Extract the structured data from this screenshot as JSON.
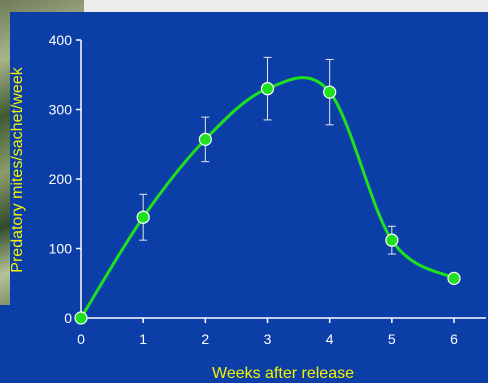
{
  "chart_data": {
    "type": "line",
    "title": "",
    "xlabel": "Weeks after release",
    "ylabel": "Predatory mites/sachet/week",
    "xlim": [
      0,
      6
    ],
    "ylim": [
      0,
      400
    ],
    "x_ticks": [
      0,
      1,
      2,
      3,
      4,
      5,
      6
    ],
    "y_ticks": [
      0,
      100,
      200,
      300,
      400
    ],
    "series": [
      {
        "x": [
          0,
          1,
          2,
          3,
          4,
          5,
          6
        ],
        "values": [
          0,
          145,
          257,
          330,
          325,
          112,
          57
        ],
        "error": [
          null,
          33,
          32,
          45,
          47,
          20,
          null
        ],
        "color": "#1fe01f",
        "marker": "circle"
      }
    ],
    "grid": false,
    "colors": {
      "background": "#0c3ea8",
      "axis": "#ffffff",
      "label": "#f5f500",
      "line": "#1fe01f"
    }
  }
}
